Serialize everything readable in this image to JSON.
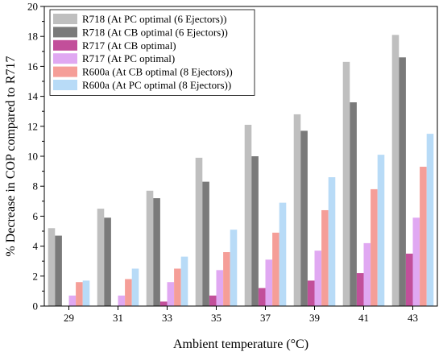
{
  "chart_data": {
    "type": "bar",
    "xlabel": "Ambient temperature (°C)",
    "ylabel": "% Decrease in COP compared to R717",
    "ylim": [
      0,
      20
    ],
    "yticks": [
      0,
      2,
      4,
      6,
      8,
      10,
      12,
      14,
      16,
      18,
      20
    ],
    "categories": [
      "29",
      "31",
      "33",
      "35",
      "37",
      "39",
      "41",
      "43"
    ],
    "legend_position": "top-left",
    "grid": false,
    "series": [
      {
        "name": "R718 (At PC optimal (6 Ejectors))",
        "color": "#bfbfbf",
        "values": [
          5.2,
          6.5,
          7.7,
          9.9,
          12.1,
          12.8,
          16.3,
          18.1
        ]
      },
      {
        "name": "R718 (At CB optimal (6 Ejectors))",
        "color": "#7a7a7a",
        "values": [
          4.7,
          5.9,
          7.2,
          8.3,
          10.0,
          11.7,
          13.6,
          16.6
        ]
      },
      {
        "name": "R717 (At CB optimal)",
        "color": "#c24f9a",
        "values": [
          0.0,
          0.0,
          0.3,
          0.7,
          1.2,
          1.7,
          2.2,
          3.5
        ]
      },
      {
        "name": "R717 (At PC optimal)",
        "color": "#e0a8f2",
        "values": [
          0.7,
          0.7,
          1.6,
          2.4,
          3.1,
          3.7,
          4.2,
          5.9
        ]
      },
      {
        "name": "R600a (At CB optimal (8 Ejectors))",
        "color": "#f59e98",
        "values": [
          1.6,
          1.8,
          2.5,
          3.6,
          4.9,
          6.4,
          7.8,
          9.3
        ]
      },
      {
        "name": "R600a (At PC optimal (8 Ejectors))",
        "color": "#b8dbf7",
        "values": [
          1.7,
          2.5,
          3.3,
          5.1,
          6.9,
          8.6,
          10.1,
          11.5
        ]
      }
    ]
  }
}
